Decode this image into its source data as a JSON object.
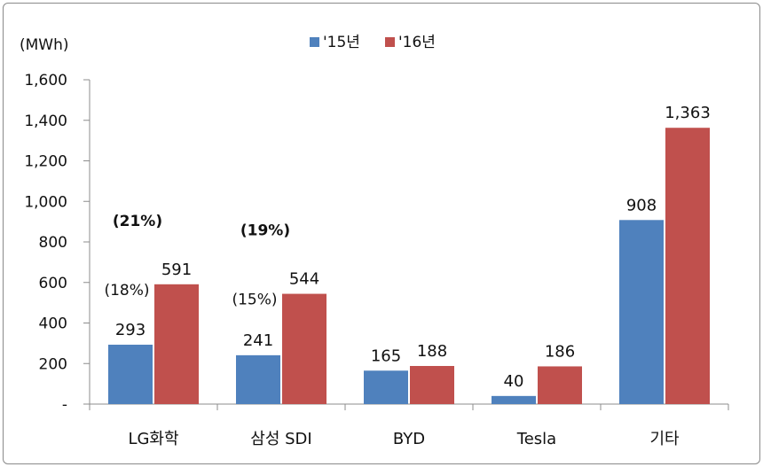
{
  "chart_data": {
    "type": "bar",
    "unit_label": "(MWh)",
    "categories": [
      "LG화학",
      "삼성 SDI",
      "BYD",
      "Tesla",
      "기타"
    ],
    "series": [
      {
        "name": "'15년",
        "color": "#4f81bd",
        "values": [
          293,
          241,
          165,
          40,
          908
        ],
        "value_labels": [
          "293",
          "241",
          "165",
          "40",
          "908"
        ]
      },
      {
        "name": "'16년",
        "color": "#c0504d",
        "values": [
          591,
          544,
          188,
          186,
          1363
        ],
        "value_labels": [
          "591",
          "544",
          "188",
          "186",
          "1,363"
        ]
      }
    ],
    "share_2015": [
      "(18%)",
      "(15%)",
      "",
      "",
      ""
    ],
    "share_2016": [
      "(21%)",
      "(19%)",
      "",
      "",
      ""
    ],
    "ylim": [
      0,
      1600
    ],
    "y_ticks": [
      0,
      200,
      400,
      600,
      800,
      1000,
      1200,
      1400,
      1600
    ],
    "y_tick_labels": [
      "-",
      "200",
      "400",
      "600",
      "800",
      "1,000",
      "1,200",
      "1,400",
      "1,600"
    ],
    "legend_position": "top-center",
    "grid": false
  }
}
